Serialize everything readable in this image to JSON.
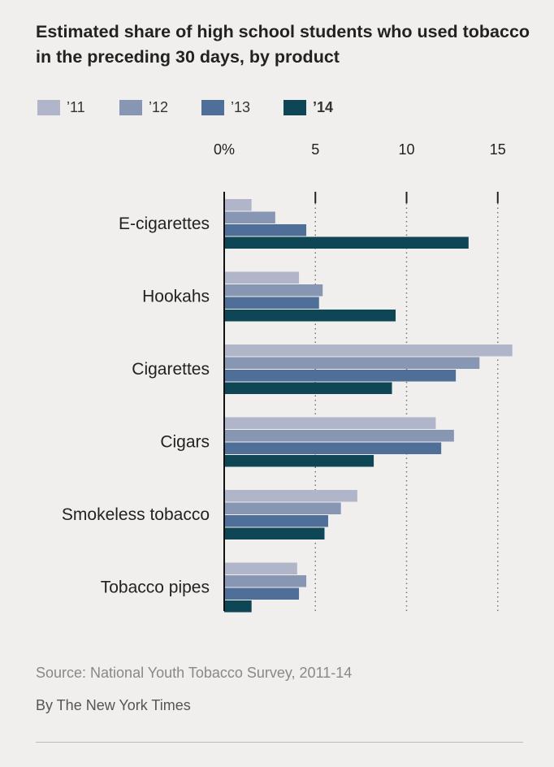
{
  "chart_data": {
    "type": "bar",
    "orientation": "horizontal",
    "title": "Estimated share of high school students who used tobacco in the preceding 30 days, by product",
    "categories": [
      "E-cigarettes",
      "Hookahs",
      "Cigarettes",
      "Cigars",
      "Smokeless tobacco",
      "Tobacco pipes"
    ],
    "series": [
      {
        "name": "’11",
        "color": "#b0b5c9",
        "values": [
          1.5,
          4.1,
          15.8,
          11.6,
          7.3,
          4.0
        ]
      },
      {
        "name": "’12",
        "color": "#8797b3",
        "values": [
          2.8,
          5.4,
          14.0,
          12.6,
          6.4,
          4.5
        ]
      },
      {
        "name": "’13",
        "color": "#4f6f98",
        "values": [
          4.5,
          5.2,
          12.7,
          11.9,
          5.7,
          4.1
        ]
      },
      {
        "name": "’14",
        "color": "#0e4655",
        "values": [
          13.4,
          9.4,
          9.2,
          8.2,
          5.5,
          1.5
        ]
      }
    ],
    "xticks": [
      0,
      5,
      10,
      15
    ],
    "xtick_labels": [
      "0%",
      "5",
      "10",
      "15"
    ],
    "xlim": [
      0,
      16
    ],
    "xlabel": "",
    "ylabel": "",
    "grid": "dotted vertical",
    "legend": "top"
  },
  "footer": {
    "source": "Source: National Youth Tobacco Survey, 2011-14",
    "byline": "By The New York Times"
  }
}
